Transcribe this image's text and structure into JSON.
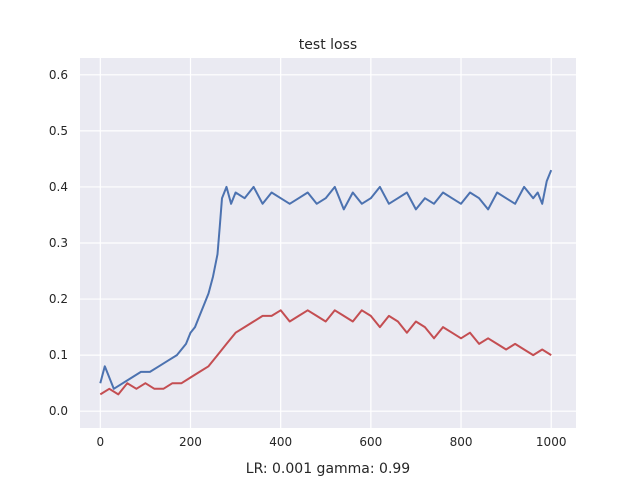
{
  "chart_data": {
    "type": "line",
    "title": "test loss",
    "xlabel": "LR: 0.001 gamma: 0.99",
    "ylabel": "",
    "xlim": [
      -45,
      1055
    ],
    "ylim": [
      -0.03,
      0.63
    ],
    "x_ticks": [
      0,
      200,
      400,
      600,
      800,
      1000
    ],
    "y_ticks": [
      0.0,
      0.1,
      0.2,
      0.3,
      0.4,
      0.5,
      0.6
    ],
    "x_tick_labels": [
      "0",
      "200",
      "400",
      "600",
      "800",
      "1000"
    ],
    "y_tick_labels": [
      "0.0",
      "0.1",
      "0.2",
      "0.3",
      "0.4",
      "0.5",
      "0.6"
    ],
    "grid": true,
    "legend": "none",
    "background": "#eaeaf2",
    "series": [
      {
        "color": "#4c72b0",
        "x": [
          0,
          10,
          20,
          30,
          50,
          70,
          90,
          110,
          130,
          150,
          170,
          190,
          200,
          210,
          220,
          230,
          240,
          250,
          260,
          265,
          270,
          280,
          290,
          300,
          320,
          340,
          360,
          380,
          400,
          420,
          440,
          460,
          480,
          500,
          520,
          540,
          560,
          580,
          600,
          620,
          640,
          660,
          680,
          700,
          720,
          740,
          760,
          780,
          800,
          820,
          840,
          860,
          880,
          900,
          920,
          940,
          960,
          970,
          980,
          990,
          1000
        ],
        "y": [
          0.05,
          0.08,
          0.06,
          0.04,
          0.05,
          0.06,
          0.07,
          0.07,
          0.08,
          0.09,
          0.1,
          0.12,
          0.14,
          0.15,
          0.17,
          0.19,
          0.21,
          0.24,
          0.28,
          0.33,
          0.38,
          0.4,
          0.37,
          0.39,
          0.38,
          0.4,
          0.37,
          0.39,
          0.38,
          0.37,
          0.38,
          0.39,
          0.37,
          0.38,
          0.4,
          0.36,
          0.39,
          0.37,
          0.38,
          0.4,
          0.37,
          0.38,
          0.39,
          0.36,
          0.38,
          0.37,
          0.39,
          0.38,
          0.37,
          0.39,
          0.38,
          0.36,
          0.39,
          0.38,
          0.37,
          0.4,
          0.38,
          0.39,
          0.37,
          0.41,
          0.43
        ]
      },
      {
        "color": "#c44e52",
        "x": [
          0,
          20,
          40,
          60,
          80,
          100,
          120,
          140,
          160,
          180,
          200,
          220,
          240,
          260,
          280,
          300,
          320,
          340,
          360,
          380,
          400,
          420,
          440,
          460,
          480,
          500,
          520,
          540,
          560,
          580,
          600,
          620,
          640,
          660,
          680,
          700,
          720,
          740,
          760,
          780,
          800,
          820,
          840,
          860,
          880,
          900,
          920,
          940,
          960,
          980,
          1000
        ],
        "y": [
          0.03,
          0.04,
          0.03,
          0.05,
          0.04,
          0.05,
          0.04,
          0.04,
          0.05,
          0.05,
          0.06,
          0.07,
          0.08,
          0.1,
          0.12,
          0.14,
          0.15,
          0.16,
          0.17,
          0.17,
          0.18,
          0.16,
          0.17,
          0.18,
          0.17,
          0.16,
          0.18,
          0.17,
          0.16,
          0.18,
          0.17,
          0.15,
          0.17,
          0.16,
          0.14,
          0.16,
          0.15,
          0.13,
          0.15,
          0.14,
          0.13,
          0.14,
          0.12,
          0.13,
          0.12,
          0.11,
          0.12,
          0.11,
          0.1,
          0.11,
          0.1
        ]
      }
    ]
  }
}
